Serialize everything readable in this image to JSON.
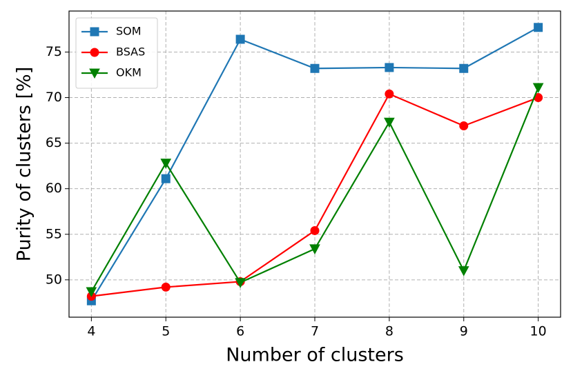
{
  "chart_data": {
    "type": "line",
    "x_label": "Number of clusters",
    "y_label": "Purity of clusters [%]",
    "x": [
      4,
      5,
      6,
      7,
      8,
      9,
      10
    ],
    "series": [
      {
        "name": "SOM",
        "color": "#1f77b4",
        "marker": "square",
        "values": [
          47.7,
          61.1,
          76.4,
          73.2,
          73.3,
          73.2,
          77.7
        ]
      },
      {
        "name": "BSAS",
        "color": "#ff0000",
        "marker": "circle",
        "values": [
          48.2,
          49.2,
          49.8,
          55.4,
          70.4,
          66.9,
          70.0
        ]
      },
      {
        "name": "OKM",
        "color": "#008000",
        "marker": "triangle-down",
        "values": [
          48.7,
          62.8,
          49.7,
          53.4,
          67.3,
          51.0,
          71.1
        ]
      }
    ],
    "xlim": [
      3.7,
      10.3
    ],
    "ylim": [
      45.9,
      79.5
    ],
    "xticks": [
      4,
      5,
      6,
      7,
      8,
      9,
      10
    ],
    "yticks": [
      50,
      55,
      60,
      65,
      70,
      75
    ],
    "grid": true,
    "legend": "upper-left"
  }
}
